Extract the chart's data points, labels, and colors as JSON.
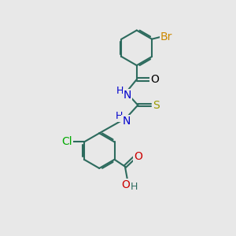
{
  "background_color": "#e8e8e8",
  "bond_color": "#2d6b5e",
  "bond_width": 1.5,
  "figsize": [
    3.0,
    3.0
  ],
  "dpi": 100,
  "colors": {
    "Br": "#cc8800",
    "O": "#cc0000",
    "N": "#0000cc",
    "S": "#999900",
    "Cl": "#00aa00",
    "C": "#2d6b5e",
    "H": "#2d6b5e",
    "O_black": "#000000"
  },
  "fontsize": 9
}
